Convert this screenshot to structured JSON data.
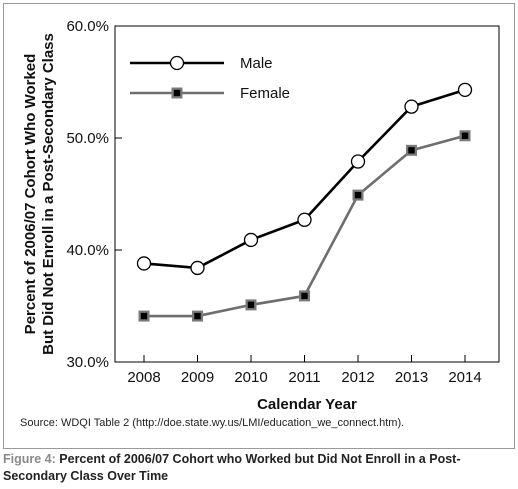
{
  "chart_data": {
    "type": "line",
    "x": [
      2008,
      2009,
      2010,
      2011,
      2012,
      2013,
      2014
    ],
    "x_tick_labels": [
      "2008",
      "2009",
      "2010",
      "2011",
      "2012",
      "2013",
      "2014"
    ],
    "series": [
      {
        "name": "Male",
        "values": [
          38.8,
          38.4,
          40.9,
          42.7,
          47.9,
          52.8,
          54.3
        ],
        "color": "#000000",
        "marker": "open-circle"
      },
      {
        "name": "Female",
        "values": [
          34.1,
          34.1,
          35.1,
          35.9,
          44.9,
          48.9,
          50.2
        ],
        "color": "#6e6e6e",
        "marker": "filled-square"
      }
    ],
    "ylim": [
      30,
      60
    ],
    "y_ticks": [
      30,
      40,
      50,
      60
    ],
    "y_tick_labels": [
      "30.0%",
      "40.0%",
      "50.0%",
      "60.0%"
    ],
    "xlabel": "Calendar Year",
    "ylabel": [
      "Percent of 2006/07 Cohort Who Worked",
      "But Did Not Enroll in a Post-Secondary Class"
    ],
    "legend": "top-left",
    "grid": false
  },
  "source_text": "Source: WDQI Table 2 (http://doe.state.wy.us/LMI/education_we_connect.htm).",
  "caption": {
    "label": "Figure 4:",
    "text": "Percent of 2006/07 Cohort who Worked but Did Not Enroll in a Post-Secondary Class Over Time"
  }
}
